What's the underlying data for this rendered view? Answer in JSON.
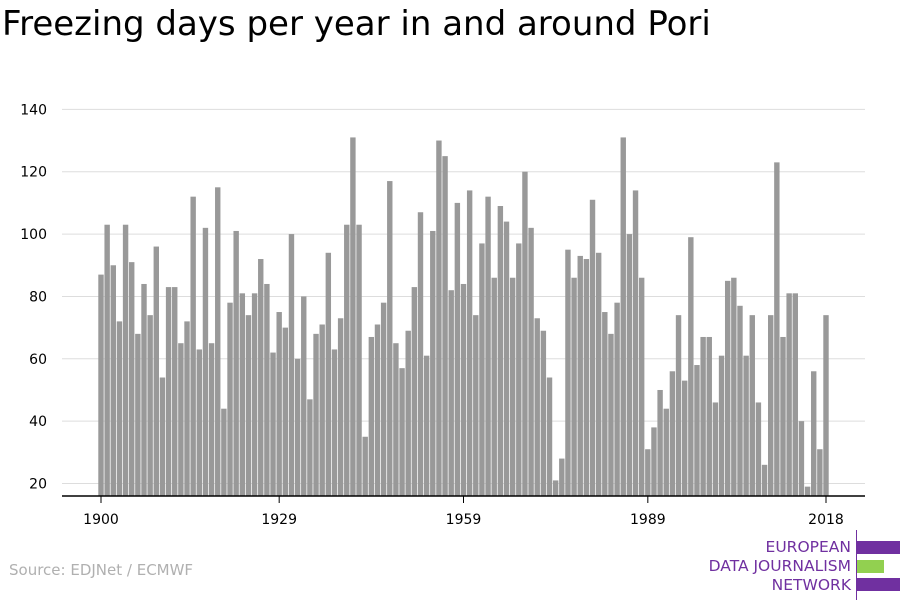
{
  "title": "Freezing days per year in and around Pori",
  "source": "Source: EDJNet / ECMWF",
  "logo": {
    "lines": [
      "EUROPEAN",
      "DATA JOURNALISM",
      "NETWORK"
    ],
    "colors": {
      "purple": "#7030a0",
      "green": "#92d050"
    }
  },
  "chart_data": {
    "type": "bar",
    "title": "Freezing days per year in and around Pori",
    "xlabel": "",
    "ylabel": "",
    "x_start": 1900,
    "x_end": 2018,
    "x_ticks": [
      1900,
      1929,
      1959,
      1989,
      2018
    ],
    "y_ticks": [
      20,
      40,
      60,
      80,
      100,
      120,
      140
    ],
    "ylim": [
      16,
      143
    ],
    "grid": true,
    "bar_color": "#999999",
    "values": [
      87,
      103,
      90,
      72,
      103,
      91,
      68,
      84,
      74,
      96,
      54,
      83,
      83,
      65,
      72,
      112,
      63,
      102,
      65,
      115,
      44,
      78,
      101,
      81,
      74,
      81,
      92,
      84,
      62,
      75,
      70,
      100,
      60,
      80,
      47,
      68,
      71,
      94,
      63,
      73,
      103,
      131,
      103,
      35,
      67,
      71,
      78,
      117,
      65,
      57,
      69,
      83,
      107,
      61,
      101,
      130,
      125,
      82,
      110,
      84,
      114,
      74,
      97,
      112,
      86,
      109,
      104,
      86,
      97,
      120,
      102,
      73,
      69,
      54,
      21,
      28,
      95,
      86,
      93,
      92,
      111,
      94,
      75,
      68,
      78,
      131,
      100,
      114,
      86,
      31,
      38,
      50,
      44,
      56,
      74,
      53,
      99,
      58,
      67,
      67,
      46,
      61,
      85,
      86,
      77,
      61,
      74,
      46,
      26,
      74,
      123,
      67,
      81,
      81,
      40,
      19,
      56,
      31,
      74
    ]
  }
}
